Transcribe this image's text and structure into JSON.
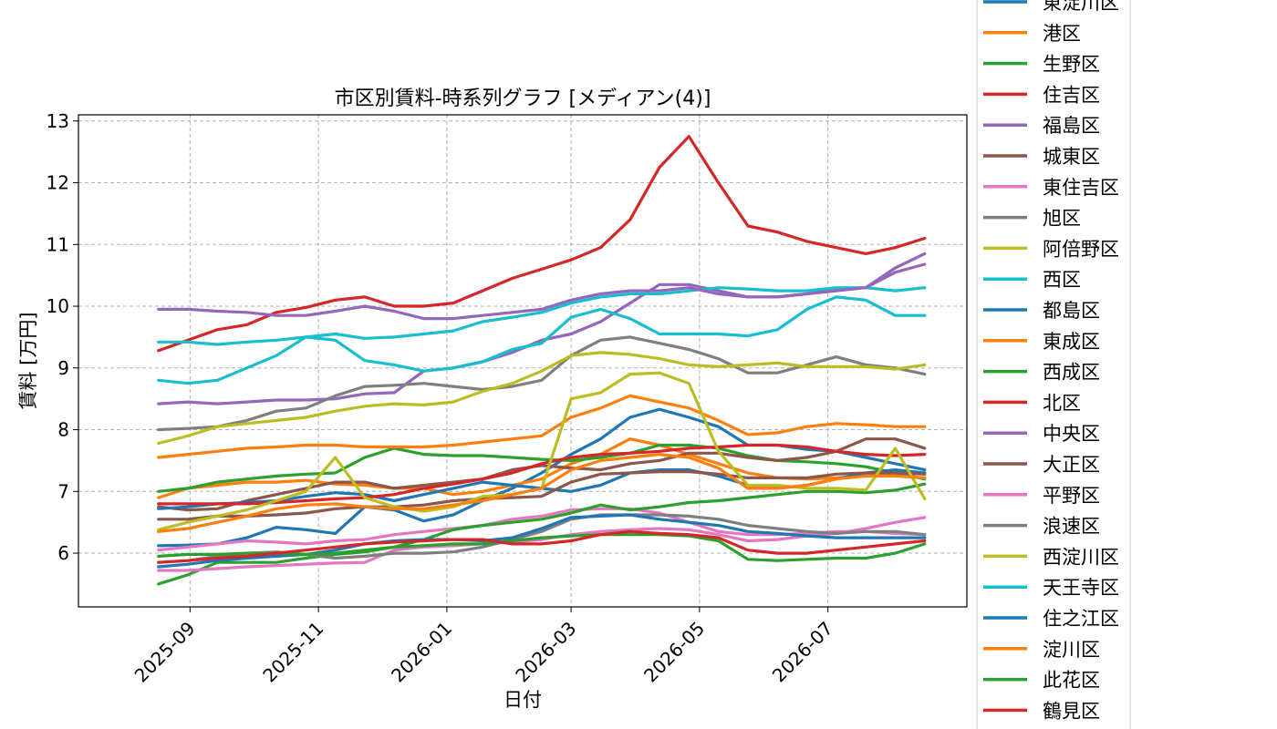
{
  "chart_data": {
    "type": "line",
    "title": "市区別賃料-時系列グラフ [メディアン(4)]",
    "xlabel": "日付",
    "ylabel": "賃料 [万円]",
    "xlim": [
      "2025-07-10",
      "2026-09-05"
    ],
    "ylim": [
      5.13,
      13.1
    ],
    "grid": true,
    "legend_position": "outside-right",
    "x_ticks": [
      "2025-09",
      "2025-11",
      "2026-01",
      "2026-03",
      "2026-05",
      "2026-07"
    ],
    "y_ticks": [
      6,
      7,
      8,
      9,
      10,
      11,
      12,
      13
    ],
    "x": [
      "2025-08-17",
      "2025-08-31",
      "2025-09-14",
      "2025-09-28",
      "2025-10-12",
      "2025-10-26",
      "2025-11-09",
      "2025-11-23",
      "2025-12-07",
      "2025-12-21",
      "2026-01-04",
      "2026-01-18",
      "2026-02-01",
      "2026-02-15",
      "2026-03-01",
      "2026-03-15",
      "2026-03-29",
      "2026-04-12",
      "2026-04-26",
      "2026-05-10",
      "2026-05-24",
      "2026-06-07",
      "2026-06-21",
      "2026-07-05",
      "2026-07-19",
      "2026-08-02",
      "2026-08-16"
    ],
    "series": [
      {
        "name": "東淀川区",
        "color": "#1f77b4",
        "values": [
          6.12,
          6.13,
          6.15,
          6.25,
          6.42,
          6.38,
          6.32,
          6.75,
          6.7,
          6.52,
          6.62,
          6.85,
          7.05,
          7.3,
          7.6,
          7.85,
          8.2,
          8.33,
          8.2,
          8.05,
          7.75,
          7.75,
          7.68,
          7.65,
          7.55,
          7.45,
          7.35
        ]
      },
      {
        "name": "港区",
        "color": "#ff7f0e",
        "values": [
          6.9,
          7.05,
          7.1,
          7.15,
          7.15,
          7.18,
          7.12,
          7.1,
          7.05,
          7.05,
          6.95,
          7.0,
          7.1,
          7.2,
          7.45,
          7.6,
          7.85,
          7.75,
          7.6,
          7.45,
          7.3,
          7.22,
          7.2,
          7.22,
          7.25,
          7.28,
          7.3
        ]
      },
      {
        "name": "生野区",
        "color": "#2ca02c",
        "values": [
          7.0,
          7.05,
          7.15,
          7.2,
          7.25,
          7.28,
          7.3,
          7.55,
          7.7,
          7.6,
          7.58,
          7.58,
          7.55,
          7.52,
          7.5,
          7.55,
          7.62,
          7.75,
          7.75,
          7.7,
          7.58,
          7.5,
          7.48,
          7.45,
          7.4,
          7.3,
          7.2
        ]
      },
      {
        "name": "住吉区",
        "color": "#d62728",
        "values": [
          9.28,
          9.45,
          9.62,
          9.7,
          9.9,
          9.98,
          10.1,
          10.15,
          10.0,
          10.0,
          10.05,
          10.25,
          10.45,
          10.6,
          10.75,
          10.95,
          11.4,
          12.25,
          12.75,
          12.0,
          11.3,
          11.2,
          11.05,
          10.95,
          10.85,
          10.95,
          11.1
        ]
      },
      {
        "name": "福島区",
        "color": "#9467bd",
        "values": [
          8.42,
          8.45,
          8.42,
          8.45,
          8.48,
          8.48,
          8.5,
          8.58,
          8.6,
          8.95,
          9.0,
          9.1,
          9.25,
          9.45,
          9.55,
          9.75,
          10.05,
          10.35,
          10.35,
          10.25,
          10.15,
          10.15,
          10.2,
          10.28,
          10.3,
          10.55,
          10.68
        ]
      },
      {
        "name": "城東区",
        "color": "#8c564b",
        "values": [
          6.75,
          6.7,
          6.72,
          6.85,
          6.95,
          7.05,
          7.15,
          7.15,
          7.05,
          7.1,
          7.15,
          7.2,
          7.35,
          7.42,
          7.38,
          7.35,
          7.45,
          7.5,
          7.62,
          7.62,
          7.55,
          7.5,
          7.55,
          7.65,
          7.85,
          7.85,
          7.7
        ]
      },
      {
        "name": "東住吉区",
        "color": "#e377c2",
        "values": [
          6.05,
          6.1,
          6.15,
          6.2,
          6.18,
          6.15,
          6.2,
          6.22,
          6.3,
          6.35,
          6.4,
          6.45,
          6.55,
          6.6,
          6.7,
          6.72,
          6.72,
          6.65,
          6.5,
          6.35,
          6.3,
          6.3,
          6.32,
          6.35,
          6.35,
          6.32,
          6.3
        ]
      },
      {
        "name": "旭区",
        "color": "#7f7f7f",
        "values": [
          8.0,
          8.02,
          8.05,
          8.15,
          8.3,
          8.35,
          8.55,
          8.7,
          8.72,
          8.75,
          8.7,
          8.65,
          8.7,
          8.8,
          9.2,
          9.45,
          9.5,
          9.4,
          9.3,
          9.15,
          8.92,
          8.92,
          9.05,
          9.18,
          9.05,
          9.0,
          8.9
        ]
      },
      {
        "name": "阿倍野区",
        "color": "#bcbd22",
        "values": [
          7.78,
          7.9,
          8.05,
          8.1,
          8.15,
          8.2,
          8.3,
          8.38,
          8.42,
          8.4,
          8.45,
          8.62,
          8.75,
          8.95,
          9.2,
          9.25,
          9.22,
          9.15,
          9.05,
          9.02,
          9.05,
          9.08,
          9.02,
          9.02,
          9.02,
          8.98,
          9.05
        ]
      },
      {
        "name": "西区",
        "color": "#17becf",
        "values": [
          9.42,
          9.42,
          9.38,
          9.42,
          9.45,
          9.5,
          9.55,
          9.48,
          9.5,
          9.55,
          9.6,
          9.75,
          9.82,
          9.9,
          10.05,
          10.15,
          10.2,
          10.2,
          10.25,
          10.3,
          10.28,
          10.25,
          10.25,
          10.3,
          10.3,
          10.25,
          10.3
        ]
      },
      {
        "name": "都島区",
        "color": "#1f77b4",
        "values": [
          6.72,
          6.75,
          6.8,
          6.82,
          6.85,
          6.92,
          6.98,
          6.95,
          6.85,
          6.95,
          7.05,
          7.15,
          7.1,
          7.05,
          7.0,
          7.1,
          7.3,
          7.35,
          7.35,
          7.25,
          7.1,
          7.05,
          7.1,
          7.2,
          7.3,
          7.35,
          7.3
        ]
      },
      {
        "name": "東成区",
        "color": "#ff7f0e",
        "values": [
          7.55,
          7.6,
          7.65,
          7.7,
          7.72,
          7.75,
          7.75,
          7.72,
          7.72,
          7.72,
          7.75,
          7.8,
          7.85,
          7.9,
          8.2,
          8.35,
          8.55,
          8.45,
          8.35,
          8.15,
          7.92,
          7.95,
          8.05,
          8.1,
          8.08,
          8.05,
          8.05
        ]
      },
      {
        "name": "西成区",
        "color": "#2ca02c",
        "values": [
          5.5,
          5.65,
          5.85,
          5.85,
          5.85,
          5.92,
          5.98,
          6.02,
          6.1,
          6.22,
          6.38,
          6.45,
          6.5,
          6.55,
          6.65,
          6.78,
          6.7,
          6.75,
          6.82,
          6.85,
          6.9,
          6.95,
          7.0,
          7.0,
          6.98,
          7.02,
          7.12
        ]
      },
      {
        "name": "北区",
        "color": "#d62728",
        "values": [
          6.8,
          6.8,
          6.8,
          6.8,
          6.82,
          6.85,
          6.88,
          6.9,
          6.95,
          7.05,
          7.12,
          7.2,
          7.3,
          7.45,
          7.55,
          7.6,
          7.62,
          7.65,
          7.7,
          7.72,
          7.75,
          7.75,
          7.72,
          7.65,
          7.6,
          7.58,
          7.6
        ]
      },
      {
        "name": "中央区",
        "color": "#9467bd",
        "values": [
          9.95,
          9.95,
          9.92,
          9.9,
          9.85,
          9.85,
          9.92,
          10.0,
          9.92,
          9.8,
          9.8,
          9.85,
          9.9,
          9.95,
          10.1,
          10.2,
          10.25,
          10.25,
          10.3,
          10.2,
          10.15,
          10.15,
          10.2,
          10.25,
          10.3,
          10.62,
          10.85
        ]
      },
      {
        "name": "大正区",
        "color": "#8c564b",
        "values": [
          6.55,
          6.55,
          6.6,
          6.6,
          6.62,
          6.65,
          6.72,
          6.75,
          6.75,
          6.78,
          6.85,
          6.88,
          6.9,
          6.92,
          7.15,
          7.28,
          7.3,
          7.32,
          7.32,
          7.28,
          7.22,
          7.22,
          7.22,
          7.28,
          7.3,
          7.3,
          7.28
        ]
      },
      {
        "name": "平野区",
        "color": "#e377c2",
        "values": [
          5.72,
          5.72,
          5.75,
          5.78,
          5.8,
          5.82,
          5.84,
          5.85,
          6.05,
          6.1,
          6.12,
          6.15,
          6.18,
          6.22,
          6.3,
          6.35,
          6.38,
          6.4,
          6.38,
          6.3,
          6.2,
          6.22,
          6.28,
          6.32,
          6.4,
          6.5,
          6.58
        ]
      },
      {
        "name": "浪速区",
        "color": "#7f7f7f",
        "values": [
          5.85,
          5.88,
          5.95,
          6.0,
          6.02,
          5.98,
          5.92,
          5.95,
          6.0,
          6.0,
          6.02,
          6.1,
          6.22,
          6.35,
          6.55,
          6.62,
          6.62,
          6.62,
          6.6,
          6.55,
          6.45,
          6.4,
          6.35,
          6.32,
          6.35,
          6.35,
          6.3
        ]
      },
      {
        "name": "西淀川区",
        "color": "#bcbd22",
        "values": [
          6.38,
          6.5,
          6.6,
          6.7,
          6.85,
          7.0,
          7.55,
          6.9,
          6.75,
          6.68,
          6.75,
          6.92,
          6.95,
          7.05,
          8.5,
          8.6,
          8.9,
          8.92,
          8.75,
          7.65,
          7.1,
          7.1,
          7.05,
          7.05,
          7.02,
          7.7,
          6.88
        ]
      },
      {
        "name": "天王寺区",
        "color": "#17becf",
        "values": [
          8.8,
          8.75,
          8.8,
          9.0,
          9.2,
          9.5,
          9.45,
          9.12,
          9.05,
          8.95,
          9.0,
          9.1,
          9.3,
          9.4,
          9.82,
          9.95,
          9.8,
          9.55,
          9.55,
          9.55,
          9.52,
          9.62,
          9.95,
          10.15,
          10.1,
          9.85,
          9.85
        ]
      },
      {
        "name": "住之江区",
        "color": "#1f77b4",
        "values": [
          5.78,
          5.82,
          5.88,
          5.92,
          5.95,
          5.98,
          6.05,
          6.15,
          6.2,
          6.22,
          6.22,
          6.2,
          6.25,
          6.4,
          6.58,
          6.6,
          6.62,
          6.55,
          6.5,
          6.45,
          6.35,
          6.32,
          6.28,
          6.25,
          6.25,
          6.25,
          6.25
        ]
      },
      {
        "name": "淀川区",
        "color": "#ff7f0e",
        "values": [
          6.35,
          6.4,
          6.5,
          6.6,
          6.72,
          6.78,
          6.8,
          6.75,
          6.72,
          6.72,
          6.78,
          6.85,
          6.95,
          7.05,
          7.35,
          7.5,
          7.55,
          7.6,
          7.55,
          7.38,
          7.05,
          7.05,
          7.1,
          7.2,
          7.25,
          7.25,
          7.22
        ]
      },
      {
        "name": "此花区",
        "color": "#2ca02c",
        "values": [
          5.95,
          5.98,
          5.98,
          6.0,
          6.0,
          5.98,
          6.0,
          6.05,
          6.1,
          6.12,
          6.15,
          6.15,
          6.2,
          6.25,
          6.28,
          6.3,
          6.3,
          6.3,
          6.28,
          6.2,
          5.9,
          5.88,
          5.9,
          5.92,
          5.92,
          6.0,
          6.15
        ]
      },
      {
        "name": "鶴見区",
        "color": "#d62728",
        "values": [
          5.85,
          5.88,
          5.92,
          5.95,
          6.0,
          6.05,
          6.1,
          6.15,
          6.18,
          6.2,
          6.22,
          6.22,
          6.15,
          6.15,
          6.2,
          6.3,
          6.35,
          6.32,
          6.3,
          6.25,
          6.05,
          6.0,
          6.0,
          6.05,
          6.1,
          6.15,
          6.2
        ]
      }
    ]
  }
}
